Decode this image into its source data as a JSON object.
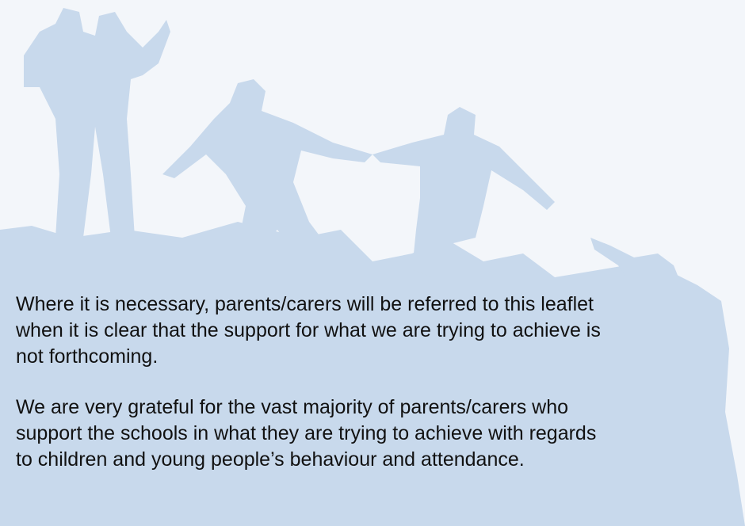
{
  "paragraphs": [
    {
      "lines": [
        "Where it is necessary, parents/carers will be referred to this leaflet",
        "when it is clear that the support for what we are trying to achieve is",
        "not forthcoming."
      ]
    },
    {
      "lines": [
        "We are very grateful for the vast majority of parents/carers who",
        "support the schools in what they are trying to achieve with regards",
        "to children and young people’s behaviour and attendance."
      ]
    }
  ]
}
